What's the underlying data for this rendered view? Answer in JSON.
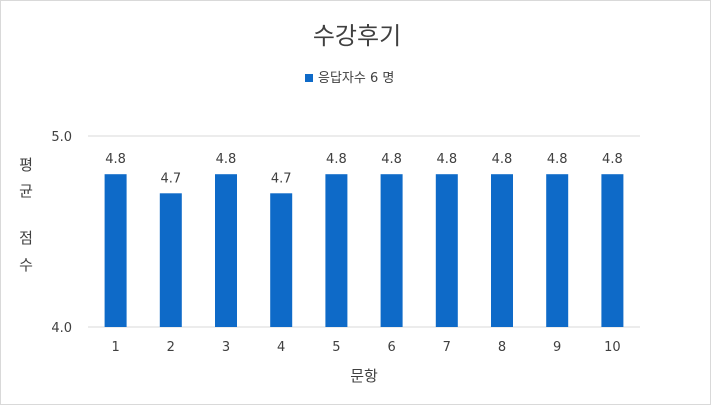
{
  "chart_data": {
    "type": "bar",
    "title": "수강후기",
    "xlabel": "문항",
    "ylabel": "평균 점수",
    "ylabel_lines": [
      "평",
      "균",
      "",
      "점",
      "수"
    ],
    "categories": [
      "1",
      "2",
      "3",
      "4",
      "5",
      "6",
      "7",
      "8",
      "9",
      "10"
    ],
    "series": [
      {
        "name": "응답자수 6 명",
        "values": [
          4.8,
          4.7,
          4.8,
          4.7,
          4.8,
          4.8,
          4.8,
          4.8,
          4.8,
          4.8
        ],
        "data_labels": [
          "4.8",
          "4.7",
          "4.8",
          "4.7",
          "4.8",
          "4.8",
          "4.8",
          "4.8",
          "4.8",
          "4.8"
        ]
      }
    ],
    "ylim": [
      4.0,
      5.0
    ],
    "yticks": [
      4.0,
      5.0
    ],
    "ytick_labels": [
      "4.0",
      "5.0"
    ],
    "grid": true,
    "legend_position": "top",
    "bar_color": "#0e6ac8",
    "grid_color": "#d9d9d9",
    "text_color": "#404040"
  }
}
